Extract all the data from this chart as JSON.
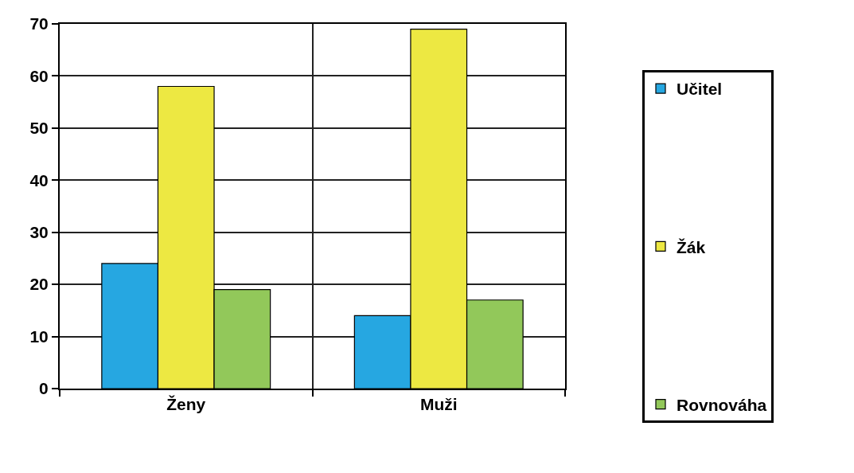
{
  "chart_data": {
    "type": "bar",
    "categories": [
      "Ženy",
      "Muži"
    ],
    "series": [
      {
        "name": "Učitel",
        "color": "#26a7e1",
        "values": [
          24,
          14
        ]
      },
      {
        "name": "Žák",
        "color": "#ede842",
        "values": [
          58,
          69
        ]
      },
      {
        "name": "Rovnováha",
        "color": "#92c85a",
        "values": [
          19,
          17
        ]
      }
    ],
    "ylim": [
      0,
      70
    ],
    "yticks": [
      0,
      10,
      20,
      30,
      40,
      50,
      60,
      70
    ],
    "grid": true,
    "legend": "right"
  }
}
